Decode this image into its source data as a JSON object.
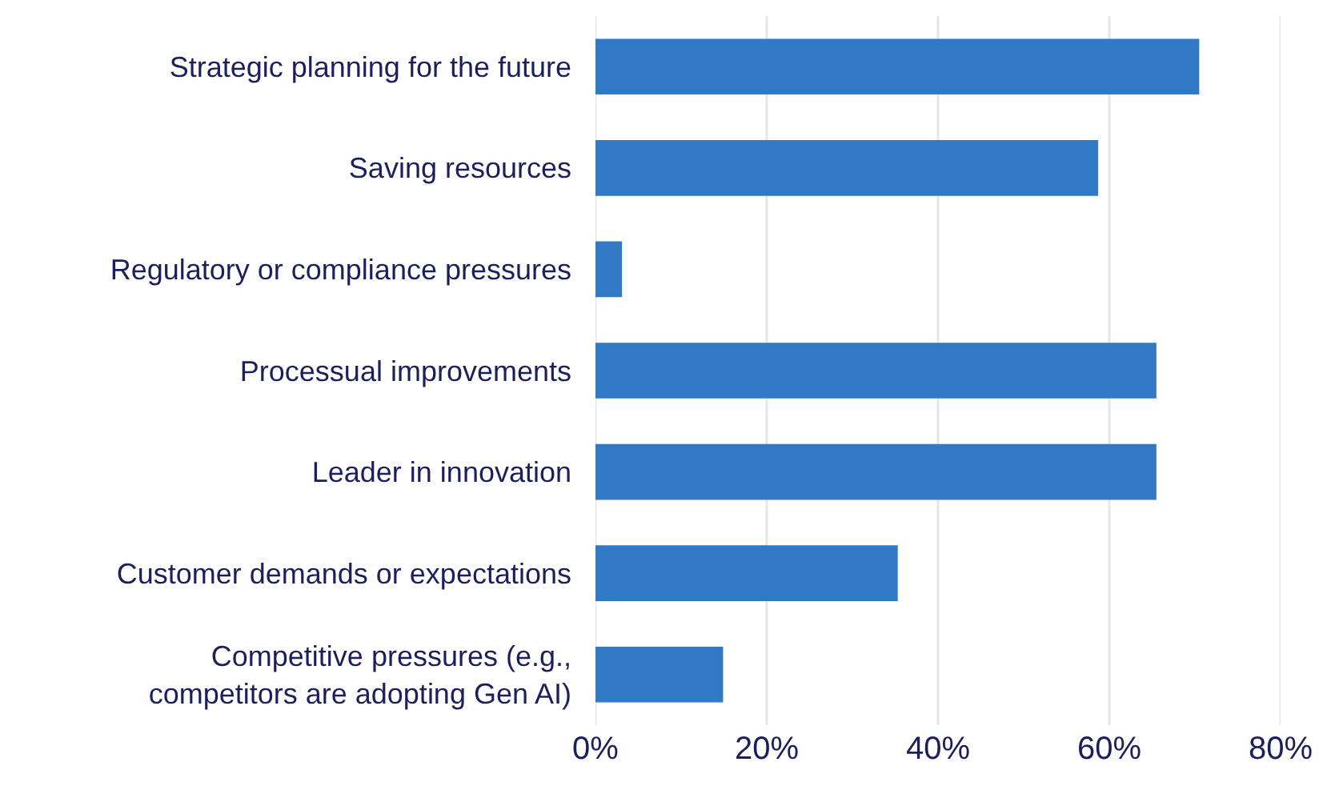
{
  "chart_data": {
    "type": "bar",
    "orientation": "horizontal",
    "categories": [
      "Strategic planning for the future",
      "Saving resources",
      "Regulatory or compliance pressures",
      "Processual improvements",
      "Leader in innovation",
      "Customer demands or expectations",
      "Competitive pressures (e.g.,\ncompetitors are adopting Gen AI)"
    ],
    "values": [
      70.5,
      58.7,
      3.1,
      65.5,
      65.5,
      35.3,
      14.9
    ],
    "color": "#3079c4",
    "xlim": [
      0,
      80
    ],
    "xticks": [
      {
        "value": 0,
        "label": "0%"
      },
      {
        "value": 20,
        "label": "20%"
      },
      {
        "value": 40,
        "label": "40%"
      },
      {
        "value": 60,
        "label": "60%"
      },
      {
        "value": 80,
        "label": "80%"
      }
    ],
    "grid": "x"
  }
}
